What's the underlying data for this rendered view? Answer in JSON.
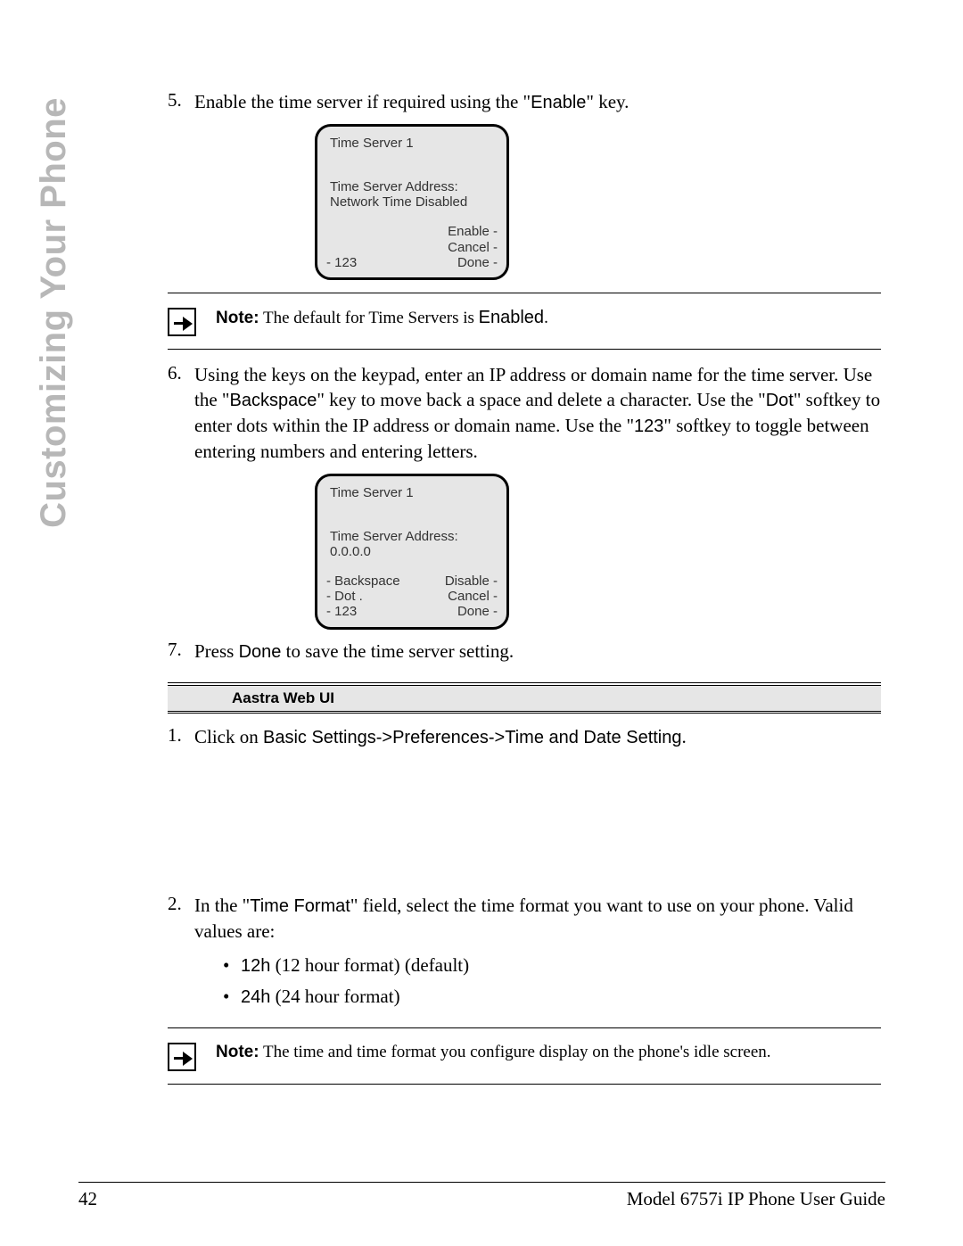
{
  "side_tab": "Customizing Your Phone",
  "step5": {
    "num": "5.",
    "text_before": "Enable the time server if required using the \"",
    "key": "Enable",
    "text_after": "\" key."
  },
  "phone1": {
    "title": "Time Server 1",
    "line1": "Time Server Address:",
    "line2": "Network Time Disabled",
    "left1": "- 123",
    "right1": "Enable -",
    "right2": "Cancel -",
    "right3": "Done -"
  },
  "note1": {
    "label": "Note:",
    "text": " The default for Time Servers is ",
    "key": "Enabled",
    "period": "."
  },
  "step6": {
    "num": "6.",
    "p1": "Using the keys on the keypad, enter an IP address or domain name for the time server. Use the \"",
    "k1": "Backspace",
    "p2": "\" key to move back a space and delete a character. Use the \"",
    "k2": "Dot",
    "p3": "\" softkey to enter dots within the IP address or domain name. Use the \"",
    "k3": "123",
    "p4": "\" softkey to toggle between entering numbers and entering letters."
  },
  "phone2": {
    "title": "Time Server 1",
    "line1": "Time Server Address:",
    "line2": "0.0.0.0",
    "left1": "- Backspace",
    "left2": "- Dot   .",
    "left3": "- 123",
    "right1": "Disable -",
    "right2": "Cancel -",
    "right3": "Done -"
  },
  "step7": {
    "num": "7.",
    "p1": "Press ",
    "k1": "Done",
    "p2": " to save the time server setting."
  },
  "section_header": "Aastra Web UI",
  "web1": {
    "num": "1.",
    "p1": "Click on ",
    "k1": "Basic Settings->Preferences->Time and Date Setting",
    "p2": "."
  },
  "web2": {
    "num": "2.",
    "p1": "In the \"",
    "k1": "Time Format",
    "p2": "\" field, select the time format you want to use on your phone. Valid values are:"
  },
  "bullets": {
    "b1_k": "12h",
    "b1_t": " (12 hour format) (default)",
    "b2_k": "24h",
    "b2_t": " (24 hour format)"
  },
  "note2": {
    "label": "Note:",
    "text": " The time and time format you configure display on the phone's idle screen."
  },
  "footer": {
    "page_num": "42",
    "title": "Model 6757i IP Phone User Guide"
  },
  "colors": {
    "tab_gray": "#b7b7b7",
    "box_bg": "#e6e6e6"
  }
}
